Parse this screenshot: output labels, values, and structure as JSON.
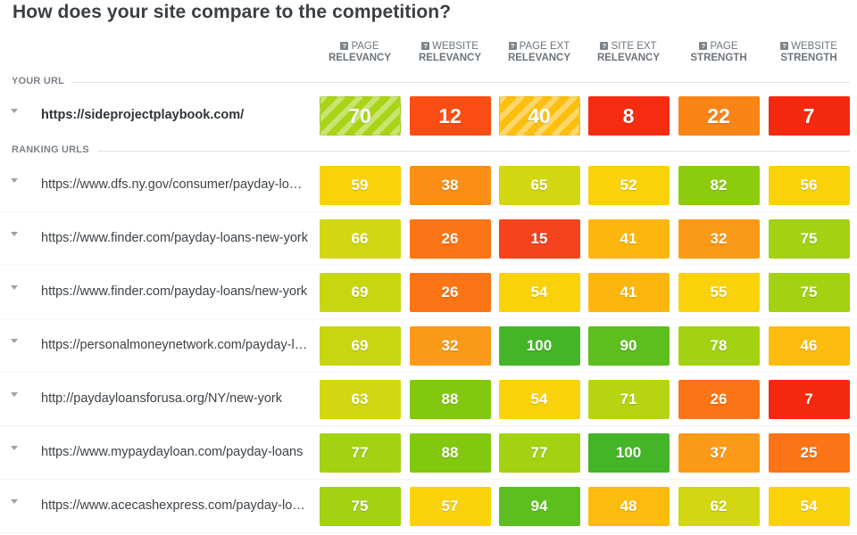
{
  "page_title": "How does your site compare to the competition?",
  "columns": [
    {
      "line1": "Page",
      "line2": "Relevancy"
    },
    {
      "line1": "Website",
      "line2": "Relevancy"
    },
    {
      "line1": "Page Ext",
      "line2": "Relevancy"
    },
    {
      "line1": "Site Ext",
      "line2": "Relevancy"
    },
    {
      "line1": "Page",
      "line2": "Strength"
    },
    {
      "line1": "Website",
      "line2": "Strength"
    }
  ],
  "help_icon_glyph": "?",
  "your_url_label": "YOUR URL",
  "ranking_urls_label": "RANKING URLS",
  "your_url": {
    "url": "https://sideprojectplaybook.com/",
    "scores": [
      70,
      12,
      40,
      8,
      22,
      7
    ],
    "colors": [
      "#a9d317",
      "#fa4d13",
      "#fcbf0e",
      "#f52b12",
      "#fb8416",
      "#f5290f"
    ],
    "striped": [
      true,
      false,
      true,
      false,
      false,
      false
    ]
  },
  "ranking_urls": [
    {
      "url": "https://www.dfs.ny.gov/consumer/payday-loans",
      "scores": [
        59,
        38,
        65,
        52,
        82,
        56
      ],
      "colors": [
        "#fad20b",
        "#fb8e17",
        "#d2d711",
        "#fad20b",
        "#8ccc0c",
        "#fad20b"
      ]
    },
    {
      "url": "https://www.finder.com/payday-loans-new-york",
      "scores": [
        66,
        26,
        15,
        41,
        32,
        75
      ],
      "colors": [
        "#d2d711",
        "#fb7416",
        "#f5431d",
        "#fcb60f",
        "#fb9a18",
        "#a2d211"
      ]
    },
    {
      "url": "https://www.finder.com/payday-loans/new-york",
      "scores": [
        69,
        26,
        54,
        41,
        55,
        75
      ],
      "colors": [
        "#c8d611",
        "#fb7416",
        "#fad20b",
        "#fcb60f",
        "#fad20b",
        "#a2d211"
      ]
    },
    {
      "url": "https://personalmoneynetwork.com/payday-loans",
      "scores": [
        69,
        32,
        100,
        90,
        78,
        46
      ],
      "colors": [
        "#c8d611",
        "#fb9a18",
        "#45b528",
        "#5dbf1f",
        "#a2d211",
        "#fcbc0d"
      ]
    },
    {
      "url": "http://paydayloansforusa.org/NY/new-york",
      "scores": [
        63,
        88,
        54,
        71,
        26,
        7
      ],
      "colors": [
        "#d2d711",
        "#82c80e",
        "#fad20b",
        "#b6d412",
        "#fb7416",
        "#f5290f"
      ]
    },
    {
      "url": "https://www.mypaydayloan.com/payday-loans",
      "scores": [
        77,
        88,
        77,
        100,
        37,
        25
      ],
      "colors": [
        "#a2d211",
        "#82c80e",
        "#a2d211",
        "#45b528",
        "#fb9a18",
        "#fb7416"
      ]
    },
    {
      "url": "https://www.acecashexpress.com/payday-loans",
      "scores": [
        75,
        57,
        94,
        48,
        62,
        54
      ],
      "colors": [
        "#a2d211",
        "#fad20b",
        "#5dbf1f",
        "#fcbc0d",
        "#d2d711",
        "#fad20b"
      ]
    }
  ]
}
